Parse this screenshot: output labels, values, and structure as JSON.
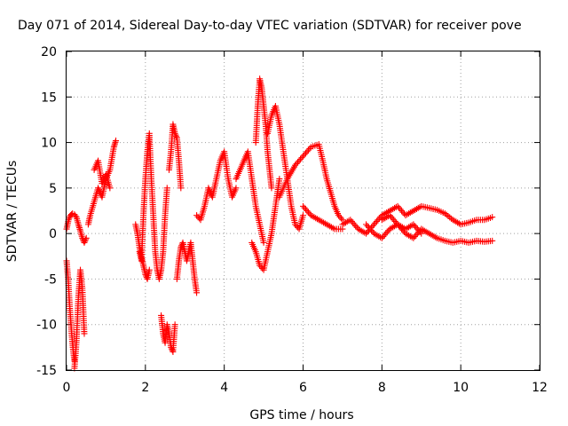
{
  "chart_data": {
    "type": "scatter",
    "title": "Day 071 of 2014, Sidereal Day-to-day VTEC variation (SDTVAR) for receiver pove",
    "xlabel": "GPS time / hours",
    "ylabel": "SDTVAR / TECUs",
    "xlim": [
      0,
      12
    ],
    "ylim": [
      -15,
      20
    ],
    "xticks": [
      0,
      2,
      4,
      6,
      8,
      10,
      12
    ],
    "yticks": [
      -15,
      -10,
      -5,
      0,
      5,
      10,
      15,
      20
    ],
    "grid": true,
    "marker": "+",
    "color": "#ff0000",
    "series": [
      {
        "name": "SDTVAR",
        "segments": [
          {
            "x": [
              0.0,
              0.05,
              0.1,
              0.15,
              0.2,
              0.25,
              0.3,
              0.35,
              0.4,
              0.45,
              0.5
            ],
            "y": [
              0.5,
              1.5,
              2.0,
              2.2,
              2.1,
              1.8,
              1.0,
              0.3,
              -0.5,
              -1.0,
              -0.5
            ]
          },
          {
            "x": [
              0.0,
              0.04,
              0.08,
              0.12,
              0.16,
              0.2
            ],
            "y": [
              -3.0,
              -5.0,
              -8.0,
              -10.5,
              -12.5,
              -14.0
            ]
          },
          {
            "x": [
              0.2,
              0.25,
              0.3,
              0.35,
              0.4,
              0.45
            ],
            "y": [
              -14.8,
              -12.0,
              -7.0,
              -4.0,
              -6.0,
              -11.0
            ]
          },
          {
            "x": [
              0.55,
              0.6,
              0.7,
              0.8,
              0.9,
              1.0,
              1.1,
              1.2,
              1.25
            ],
            "y": [
              1.0,
              2.0,
              3.5,
              5.0,
              4.0,
              6.0,
              7.0,
              9.5,
              10.2
            ]
          },
          {
            "x": [
              0.7,
              0.8,
              0.9,
              1.0,
              1.1
            ],
            "y": [
              7.0,
              8.0,
              5.5,
              6.5,
              5.0
            ]
          },
          {
            "x": [
              1.75,
              1.8,
              1.85,
              1.9,
              1.95,
              2.0,
              2.05,
              2.1
            ],
            "y": [
              1.0,
              0.0,
              -1.5,
              -2.5,
              -3.5,
              -4.5,
              -5.0,
              -4.0
            ]
          },
          {
            "x": [
              1.85,
              1.9,
              1.95,
              2.0,
              2.05,
              2.1,
              2.15,
              2.2,
              2.25,
              2.3,
              2.35,
              2.4,
              2.45,
              2.5,
              2.55
            ],
            "y": [
              -2.0,
              -3.0,
              2.0,
              6.0,
              9.0,
              11.0,
              6.0,
              2.0,
              -2.0,
              -4.0,
              -5.0,
              -4.0,
              -2.0,
              2.0,
              5.0
            ]
          },
          {
            "x": [
              2.6,
              2.65,
              2.7,
              2.75,
              2.8,
              2.85,
              2.9
            ],
            "y": [
              7.0,
              9.0,
              12.0,
              11.0,
              10.5,
              8.0,
              5.0
            ]
          },
          {
            "x": [
              2.4,
              2.45,
              2.5,
              2.55,
              2.6,
              2.65,
              2.7,
              2.75
            ],
            "y": [
              -9.0,
              -11.0,
              -12.0,
              -10.0,
              -11.0,
              -12.5,
              -13.0,
              -10.0
            ]
          },
          {
            "x": [
              2.8,
              2.85,
              2.9,
              2.95,
              3.0,
              3.05,
              3.1,
              3.15,
              3.2,
              3.25,
              3.3
            ],
            "y": [
              -5.0,
              -3.0,
              -1.5,
              -1.0,
              -2.0,
              -3.0,
              -2.0,
              -1.0,
              -3.0,
              -5.0,
              -6.5
            ]
          },
          {
            "x": [
              3.3,
              3.4,
              3.5,
              3.6,
              3.7,
              3.8,
              3.9,
              4.0,
              4.1,
              4.2,
              4.3
            ],
            "y": [
              2.0,
              1.5,
              3.0,
              5.0,
              4.0,
              6.0,
              8.0,
              9.0,
              6.0,
              4.0,
              5.0
            ]
          },
          {
            "x": [
              4.3,
              4.4,
              4.5,
              4.6,
              4.7,
              4.8,
              4.9,
              5.0
            ],
            "y": [
              6.0,
              7.0,
              8.0,
              9.0,
              6.0,
              3.0,
              1.0,
              -1.0
            ]
          },
          {
            "x": [
              4.8,
              4.85,
              4.9,
              4.95,
              5.0,
              5.05,
              5.1,
              5.15,
              5.2
            ],
            "y": [
              10.0,
              14.0,
              17.0,
              16.0,
              14.0,
              12.0,
              9.0,
              7.0,
              5.0
            ]
          },
          {
            "x": [
              4.7,
              4.8,
              4.9,
              5.0,
              5.1,
              5.2,
              5.3,
              5.4
            ],
            "y": [
              -1.0,
              -2.0,
              -3.5,
              -4.0,
              -2.0,
              0.0,
              3.0,
              6.0
            ]
          },
          {
            "x": [
              5.1,
              5.2,
              5.3,
              5.4,
              5.5,
              5.6,
              5.7,
              5.8,
              5.9,
              6.0
            ],
            "y": [
              11.0,
              13.0,
              14.0,
              12.0,
              9.0,
              6.0,
              3.0,
              1.0,
              0.5,
              2.0
            ]
          },
          {
            "x": [
              5.4,
              5.6,
              5.8,
              6.0,
              6.2,
              6.4,
              6.5,
              6.6,
              6.7,
              6.8,
              6.9,
              7.0
            ],
            "y": [
              4.0,
              6.0,
              7.5,
              8.5,
              9.5,
              9.8,
              8.0,
              6.0,
              4.5,
              3.0,
              2.0,
              1.5
            ]
          },
          {
            "x": [
              6.0,
              6.2,
              6.4,
              6.6,
              6.8,
              7.0
            ],
            "y": [
              3.0,
              2.0,
              1.5,
              1.0,
              0.5,
              0.5
            ]
          },
          {
            "x": [
              7.0,
              7.2,
              7.4,
              7.6,
              7.8,
              8.0,
              8.2,
              8.4,
              8.6,
              8.8,
              9.0,
              9.2,
              9.4,
              9.6,
              9.8,
              10.0,
              10.2,
              10.4,
              10.6,
              10.8
            ],
            "y": [
              1.0,
              1.5,
              0.5,
              0.0,
              1.0,
              2.0,
              2.5,
              3.0,
              2.0,
              2.5,
              3.0,
              2.8,
              2.6,
              2.2,
              1.5,
              1.0,
              1.2,
              1.5,
              1.5,
              1.8
            ]
          },
          {
            "x": [
              7.6,
              7.8,
              8.0,
              8.2,
              8.4,
              8.6,
              8.8,
              9.0,
              9.2,
              9.4,
              9.6,
              9.8,
              10.0,
              10.2,
              10.4,
              10.6,
              10.8
            ],
            "y": [
              1.0,
              0.0,
              -0.5,
              0.5,
              1.0,
              0.0,
              -0.5,
              0.5,
              0.0,
              -0.5,
              -0.8,
              -1.0,
              -0.8,
              -1.0,
              -0.8,
              -0.9,
              -0.8
            ]
          },
          {
            "x": [
              8.0,
              8.2,
              8.4,
              8.6,
              8.8,
              9.0
            ],
            "y": [
              1.5,
              2.0,
              1.0,
              0.5,
              1.0,
              0.0
            ]
          }
        ]
      }
    ]
  }
}
